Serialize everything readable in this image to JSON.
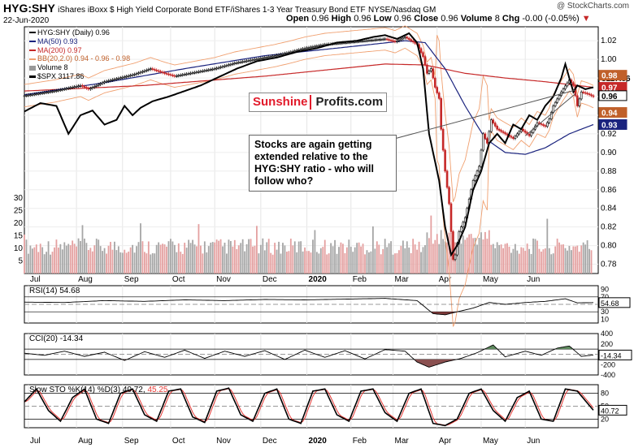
{
  "header": {
    "symbol": "HYG:SHY",
    "description": "iShares iBoxx $ High Yield Corporate Bond ETF/iShares 1-3 Year Treasury Bond ETF",
    "exchange": "NYSE/Nasdaq GM",
    "date": "22-Jun-2020",
    "open_label": "Open",
    "open": "0.96",
    "high_label": "High",
    "high": "0.96",
    "low_label": "Low",
    "low": "0.96",
    "close_label": "Close",
    "close": "0.96",
    "volume_label": "Volume",
    "volume": "8",
    "chg_label": "Chg",
    "chg": "-0.00 (-0.05%)",
    "credit": "@ StockCharts.com"
  },
  "legend": {
    "main": "HYG:SHY (Daily) 0.96",
    "ma50": "MA(50) 0.93",
    "ma200": "MA(200) 0.97",
    "bb": "BB(20,2.0) 0.94 - 0.96 - 0.98",
    "volume": "Volume 8",
    "spx": "$SPX 3117.86"
  },
  "watermark": {
    "part1": "Sunshine",
    "part2": "Profits.com"
  },
  "annotation": "Stocks are again getting extended relative to the HYG:SHY ratio - who will follow who?",
  "price_tags": {
    "spx": "3117.86",
    "ma200": "0.97",
    "close": "0.96",
    "ma50": "0.93",
    "bb_upper": "0.98",
    "bb_lower": "0.94"
  },
  "panels": {
    "rsi": {
      "label": "RSI(14) 54.68",
      "value": "54.68",
      "ticks": [
        "90",
        "70",
        "50",
        "30",
        "10"
      ]
    },
    "cci": {
      "label": "CCI(20) -14.34",
      "value": "-14.34",
      "ticks": [
        "400",
        "200",
        "0",
        "-200",
        "-400"
      ]
    },
    "sto": {
      "label_k": "Slow STO %K(14) %D(3) 40.72,",
      "label_d": "45.25",
      "value": "40.72",
      "ticks": [
        "80",
        "50",
        "20"
      ]
    }
  },
  "colors": {
    "price": "#000000",
    "ma50": "#1a237e",
    "ma200": "#c62828",
    "bb": "#f0a070",
    "up": "#000000",
    "down": "#c62828",
    "vol_up": "#a6a6a6",
    "vol_down": "#e4a0a0",
    "rsi_fill": "#7d3a3a",
    "cci_pos": "#5e8a5e",
    "cci_neg": "#8a5050",
    "sto_k": "#000000",
    "sto_d": "#e53935"
  },
  "chart_data": {
    "type": "line",
    "title": "HYG:SHY (Daily)",
    "months": [
      "Jul",
      "Aug",
      "Sep",
      "Oct",
      "Nov",
      "Dec",
      "2020",
      "Feb",
      "Mar",
      "Apr",
      "May",
      "Jun"
    ],
    "price_axis": [
      "1.02",
      "1.00",
      "0.98",
      "0.96",
      "0.94",
      "0.92",
      "0.90",
      "0.88",
      "0.86",
      "0.84",
      "0.82",
      "0.80",
      "0.78"
    ],
    "volume_axis": [
      "30",
      "25",
      "20",
      "15",
      "10",
      "5"
    ],
    "ylim": [
      0.77,
      1.035
    ],
    "series": [
      {
        "name": "HYG:SHY",
        "points": [
          [
            0,
            0.961
          ],
          [
            15,
            0.966
          ],
          [
            28,
            0.972
          ],
          [
            32,
            0.968
          ],
          [
            40,
            0.976
          ],
          [
            55,
            0.984
          ],
          [
            63,
            0.99
          ],
          [
            70,
            0.985
          ],
          [
            75,
            0.982
          ],
          [
            85,
            0.986
          ],
          [
            95,
            0.99
          ],
          [
            105,
            0.996
          ],
          [
            115,
            1.0
          ],
          [
            125,
            1.004
          ],
          [
            133,
            1.008
          ],
          [
            140,
            1.012
          ],
          [
            150,
            1.016
          ],
          [
            160,
            1.018
          ],
          [
            170,
            1.02
          ],
          [
            180,
            1.022
          ],
          [
            185,
            1.019
          ],
          [
            190,
            1.024
          ],
          [
            196,
            1.016
          ],
          [
            199,
            1.003
          ],
          [
            201,
            0.985
          ],
          [
            203,
            0.99
          ],
          [
            205,
            0.97
          ],
          [
            207,
            0.958
          ],
          [
            208,
            0.925
          ],
          [
            210,
            0.88
          ],
          [
            212,
            0.845
          ],
          [
            214,
            0.785
          ],
          [
            215,
            0.79
          ],
          [
            217,
            0.815
          ],
          [
            220,
            0.83
          ],
          [
            224,
            0.87
          ],
          [
            227,
            0.885
          ],
          [
            229,
            0.92
          ],
          [
            231,
            0.91
          ],
          [
            233,
            0.935
          ],
          [
            236,
            0.925
          ],
          [
            240,
            0.92
          ],
          [
            244,
            0.915
          ],
          [
            248,
            0.925
          ],
          [
            252,
            0.918
          ],
          [
            256,
            0.932
          ],
          [
            260,
            0.928
          ],
          [
            262,
            0.936
          ],
          [
            264,
            0.95
          ],
          [
            268,
            0.965
          ],
          [
            272,
            0.978
          ],
          [
            274,
            0.972
          ],
          [
            276,
            0.95
          ],
          [
            278,
            0.965
          ],
          [
            281,
            0.963
          ],
          [
            284,
            0.96
          ]
        ]
      },
      {
        "name": "$SPX",
        "points": [
          [
            0,
            0.944
          ],
          [
            8,
            0.953
          ],
          [
            16,
            0.95
          ],
          [
            22,
            0.92
          ],
          [
            28,
            0.94
          ],
          [
            34,
            0.945
          ],
          [
            40,
            0.93
          ],
          [
            46,
            0.935
          ],
          [
            50,
            0.95
          ],
          [
            54,
            0.94
          ],
          [
            58,
            0.948
          ],
          [
            64,
            0.955
          ],
          [
            72,
            0.96
          ],
          [
            80,
            0.966
          ],
          [
            88,
            0.972
          ],
          [
            96,
            0.98
          ],
          [
            106,
            0.99
          ],
          [
            116,
            0.998
          ],
          [
            126,
            1.002
          ],
          [
            136,
            1.008
          ],
          [
            146,
            1.012
          ],
          [
            156,
            1.018
          ],
          [
            166,
            1.02
          ],
          [
            174,
            1.024
          ],
          [
            180,
            1.026
          ],
          [
            186,
            1.022
          ],
          [
            192,
            1.028
          ],
          [
            196,
            1.018
          ],
          [
            199,
            0.99
          ],
          [
            202,
            0.92
          ],
          [
            204,
            0.9
          ],
          [
            207,
            0.87
          ],
          [
            210,
            0.82
          ],
          [
            213,
            0.79
          ],
          [
            216,
            0.8
          ],
          [
            220,
            0.82
          ],
          [
            224,
            0.86
          ],
          [
            228,
            0.88
          ],
          [
            232,
            0.91
          ],
          [
            236,
            0.92
          ],
          [
            240,
            0.91
          ],
          [
            244,
            0.93
          ],
          [
            248,
            0.925
          ],
          [
            252,
            0.94
          ],
          [
            256,
            0.935
          ],
          [
            260,
            0.95
          ],
          [
            264,
            0.96
          ],
          [
            268,
            0.98
          ],
          [
            270,
            0.995
          ],
          [
            272,
            0.98
          ],
          [
            274,
            0.965
          ],
          [
            276,
            0.972
          ],
          [
            280,
            0.968
          ],
          [
            284,
            0.97
          ]
        ]
      },
      {
        "name": "MA(50)",
        "points": [
          [
            0,
            0.962
          ],
          [
            40,
            0.975
          ],
          [
            80,
            0.99
          ],
          [
            120,
            1.004
          ],
          [
            160,
            1.013
          ],
          [
            190,
            1.02
          ],
          [
            200,
            1.018
          ],
          [
            210,
            0.99
          ],
          [
            220,
            0.95
          ],
          [
            230,
            0.915
          ],
          [
            240,
            0.9
          ],
          [
            250,
            0.898
          ],
          [
            260,
            0.905
          ],
          [
            272,
            0.92
          ],
          [
            284,
            0.93
          ]
        ]
      },
      {
        "name": "MA(200)",
        "points": [
          [
            0,
            0.966
          ],
          [
            60,
            0.972
          ],
          [
            120,
            0.982
          ],
          [
            180,
            0.995
          ],
          [
            200,
            0.994
          ],
          [
            220,
            0.985
          ],
          [
            240,
            0.98
          ],
          [
            260,
            0.976
          ],
          [
            284,
            0.97
          ]
        ]
      }
    ],
    "rsi": {
      "range": [
        0,
        100
      ],
      "points": [
        [
          0,
          56
        ],
        [
          20,
          55
        ],
        [
          40,
          60
        ],
        [
          60,
          58
        ],
        [
          80,
          62
        ],
        [
          100,
          60
        ],
        [
          120,
          63
        ],
        [
          140,
          62
        ],
        [
          160,
          64
        ],
        [
          180,
          66
        ],
        [
          196,
          60
        ],
        [
          204,
          25
        ],
        [
          210,
          22
        ],
        [
          216,
          30
        ],
        [
          224,
          40
        ],
        [
          232,
          55
        ],
        [
          240,
          50
        ],
        [
          250,
          55
        ],
        [
          260,
          58
        ],
        [
          270,
          65
        ],
        [
          276,
          54
        ],
        [
          284,
          54.68
        ]
      ]
    },
    "cci": {
      "range": [
        -400,
        400
      ],
      "points": [
        [
          0,
          20
        ],
        [
          10,
          -20
        ],
        [
          20,
          60
        ],
        [
          30,
          -40
        ],
        [
          40,
          40
        ],
        [
          50,
          -120
        ],
        [
          60,
          50
        ],
        [
          70,
          -60
        ],
        [
          80,
          80
        ],
        [
          90,
          -80
        ],
        [
          100,
          60
        ],
        [
          110,
          -40
        ],
        [
          120,
          70
        ],
        [
          130,
          -100
        ],
        [
          140,
          80
        ],
        [
          150,
          -60
        ],
        [
          160,
          70
        ],
        [
          170,
          -90
        ],
        [
          180,
          90
        ],
        [
          190,
          60
        ],
        [
          196,
          -150
        ],
        [
          202,
          -250
        ],
        [
          210,
          -150
        ],
        [
          218,
          -80
        ],
        [
          226,
          30
        ],
        [
          234,
          180
        ],
        [
          240,
          -50
        ],
        [
          250,
          60
        ],
        [
          258,
          -20
        ],
        [
          266,
          120
        ],
        [
          272,
          160
        ],
        [
          278,
          -40
        ],
        [
          284,
          -14.34
        ]
      ]
    },
    "sto": {
      "range": [
        0,
        100
      ],
      "points_k": [
        [
          0,
          60
        ],
        [
          6,
          90
        ],
        [
          12,
          40
        ],
        [
          18,
          15
        ],
        [
          24,
          70
        ],
        [
          30,
          90
        ],
        [
          36,
          20
        ],
        [
          42,
          10
        ],
        [
          48,
          80
        ],
        [
          54,
          90
        ],
        [
          60,
          30
        ],
        [
          66,
          15
        ],
        [
          72,
          85
        ],
        [
          78,
          90
        ],
        [
          84,
          25
        ],
        [
          90,
          12
        ],
        [
          96,
          85
        ],
        [
          102,
          92
        ],
        [
          108,
          30
        ],
        [
          114,
          15
        ],
        [
          120,
          80
        ],
        [
          126,
          90
        ],
        [
          132,
          20
        ],
        [
          138,
          10
        ],
        [
          144,
          85
        ],
        [
          150,
          90
        ],
        [
          156,
          30
        ],
        [
          162,
          15
        ],
        [
          168,
          85
        ],
        [
          174,
          90
        ],
        [
          180,
          35
        ],
        [
          186,
          15
        ],
        [
          192,
          80
        ],
        [
          198,
          90
        ],
        [
          204,
          10
        ],
        [
          210,
          5
        ],
        [
          216,
          20
        ],
        [
          222,
          80
        ],
        [
          228,
          90
        ],
        [
          234,
          40
        ],
        [
          240,
          15
        ],
        [
          246,
          70
        ],
        [
          252,
          85
        ],
        [
          258,
          20
        ],
        [
          264,
          15
        ],
        [
          270,
          90
        ],
        [
          276,
          85
        ],
        [
          284,
          40.72
        ]
      ],
      "last_d": 45.25
    }
  }
}
